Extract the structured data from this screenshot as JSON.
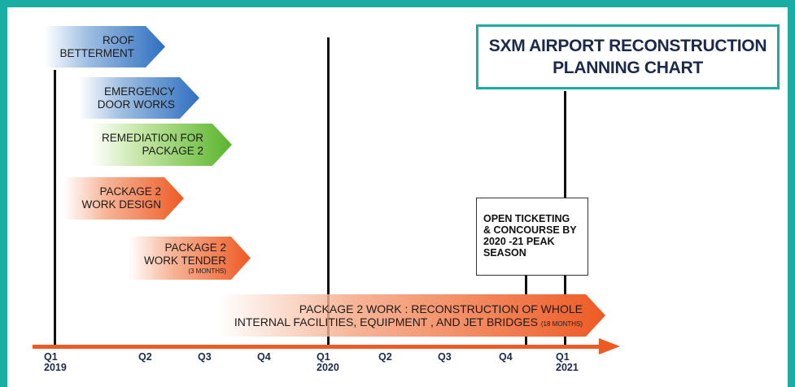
{
  "title": "SXM AIRPORT RECONSTRUCTION\nPLANNING CHART",
  "tasks": [
    {
      "label": "ROOF\nBETTERMENT",
      "sub": "",
      "color": "blue"
    },
    {
      "label": "EMERGENCY\nDOOR WORKS",
      "sub": "",
      "color": "blue"
    },
    {
      "label": "REMEDIATION FOR\nPACKAGE 2",
      "sub": "",
      "color": "green"
    },
    {
      "label": "PACKAGE 2\nWORK DESIGN",
      "sub": "",
      "color": "orange"
    },
    {
      "label": "PACKAGE 2\nWORK TENDER",
      "sub": "(3 MONTHS)",
      "color": "orange"
    },
    {
      "label": "PACKAGE 2 WORK : RECONSTRUCTION OF WHOLE\nINTERNAL FACILITIES, EQUIPMENT , AND JET BRIDGES",
      "sub": "(18 MONTHS)",
      "color": "orange"
    }
  ],
  "note": "OPEN TICKETING\n& CONCOURSE BY\n2020 -21 PEAK\nSEASON",
  "timeline": [
    {
      "quarter": "Q1",
      "year": "2019"
    },
    {
      "quarter": "Q2",
      "year": ""
    },
    {
      "quarter": "Q3",
      "year": ""
    },
    {
      "quarter": "Q4",
      "year": ""
    },
    {
      "quarter": "Q1",
      "year": "2020"
    },
    {
      "quarter": "Q2",
      "year": ""
    },
    {
      "quarter": "Q3",
      "year": ""
    },
    {
      "quarter": "Q4",
      "year": ""
    },
    {
      "quarter": "Q1",
      "year": "2021"
    }
  ],
  "colors": {
    "border": "#1aada4",
    "axis": "#ee5a24",
    "blue": "#2f6fc1",
    "green": "#5ab52c",
    "orange": "#ee5a24"
  }
}
